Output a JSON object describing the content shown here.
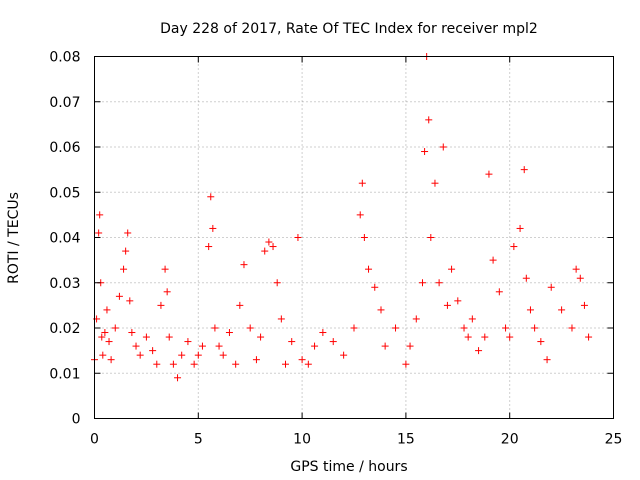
{
  "chart_data": {
    "type": "scatter",
    "title": "Day 228 of 2017, Rate Of TEC Index for receiver mpl2",
    "xlabel": "GPS time / hours",
    "ylabel": "ROTI / TECUs",
    "xlim": [
      0,
      25
    ],
    "ylim": [
      0,
      0.08
    ],
    "x_ticks": [
      0,
      5,
      10,
      15,
      20,
      25
    ],
    "x_tick_labels": [
      "0",
      "5",
      "10",
      "15",
      "20",
      "25"
    ],
    "y_ticks": [
      0,
      0.01,
      0.02,
      0.03,
      0.04,
      0.05,
      0.06,
      0.07,
      0.08
    ],
    "y_tick_labels": [
      "0",
      "0.01",
      "0.02",
      "0.03",
      "0.04",
      "0.05",
      "0.06",
      "0.07",
      "0.08"
    ],
    "grid": true,
    "marker": "+",
    "color": "#ff0000",
    "series": [
      {
        "name": "ROTI",
        "x": [
          0.0,
          0.1,
          0.2,
          0.25,
          0.3,
          0.35,
          0.4,
          0.5,
          0.6,
          0.7,
          0.8,
          1.0,
          1.2,
          1.4,
          1.5,
          1.6,
          1.7,
          1.8,
          2.0,
          2.2,
          2.5,
          2.8,
          3.0,
          3.2,
          3.4,
          3.5,
          3.6,
          3.8,
          4.0,
          4.2,
          4.5,
          4.8,
          5.0,
          5.2,
          5.5,
          5.6,
          5.7,
          5.8,
          6.0,
          6.2,
          6.5,
          6.8,
          7.0,
          7.2,
          7.5,
          7.8,
          8.0,
          8.2,
          8.4,
          8.6,
          8.8,
          9.0,
          9.2,
          9.5,
          9.8,
          10.0,
          10.3,
          10.6,
          11.0,
          11.5,
          12.0,
          12.5,
          12.8,
          12.9,
          13.0,
          13.2,
          13.5,
          13.8,
          14.0,
          14.5,
          15.0,
          15.2,
          15.5,
          15.8,
          15.9,
          16.0,
          16.1,
          16.2,
          16.4,
          16.6,
          16.8,
          17.0,
          17.2,
          17.5,
          17.8,
          18.0,
          18.2,
          18.5,
          18.8,
          19.0,
          19.2,
          19.5,
          19.8,
          20.0,
          20.2,
          20.5,
          20.7,
          20.8,
          21.0,
          21.2,
          21.5,
          21.8,
          22.0,
          22.5,
          23.0,
          23.2,
          23.4,
          23.6,
          23.8
        ],
        "y": [
          0.013,
          0.022,
          0.041,
          0.045,
          0.03,
          0.018,
          0.014,
          0.019,
          0.024,
          0.017,
          0.013,
          0.02,
          0.027,
          0.033,
          0.037,
          0.041,
          0.026,
          0.019,
          0.016,
          0.014,
          0.018,
          0.015,
          0.012,
          0.025,
          0.033,
          0.028,
          0.018,
          0.012,
          0.009,
          0.014,
          0.017,
          0.012,
          0.014,
          0.016,
          0.038,
          0.049,
          0.042,
          0.02,
          0.016,
          0.014,
          0.019,
          0.012,
          0.025,
          0.034,
          0.02,
          0.013,
          0.018,
          0.037,
          0.039,
          0.038,
          0.03,
          0.022,
          0.012,
          0.017,
          0.04,
          0.013,
          0.012,
          0.016,
          0.019,
          0.017,
          0.014,
          0.02,
          0.045,
          0.052,
          0.04,
          0.033,
          0.029,
          0.024,
          0.016,
          0.02,
          0.012,
          0.016,
          0.022,
          0.03,
          0.059,
          0.08,
          0.066,
          0.04,
          0.052,
          0.03,
          0.06,
          0.025,
          0.033,
          0.026,
          0.02,
          0.018,
          0.022,
          0.015,
          0.018,
          0.054,
          0.035,
          0.028,
          0.02,
          0.018,
          0.038,
          0.042,
          0.055,
          0.031,
          0.024,
          0.02,
          0.017,
          0.013,
          0.029,
          0.024,
          0.02,
          0.033,
          0.031,
          0.025,
          0.018
        ]
      }
    ]
  }
}
